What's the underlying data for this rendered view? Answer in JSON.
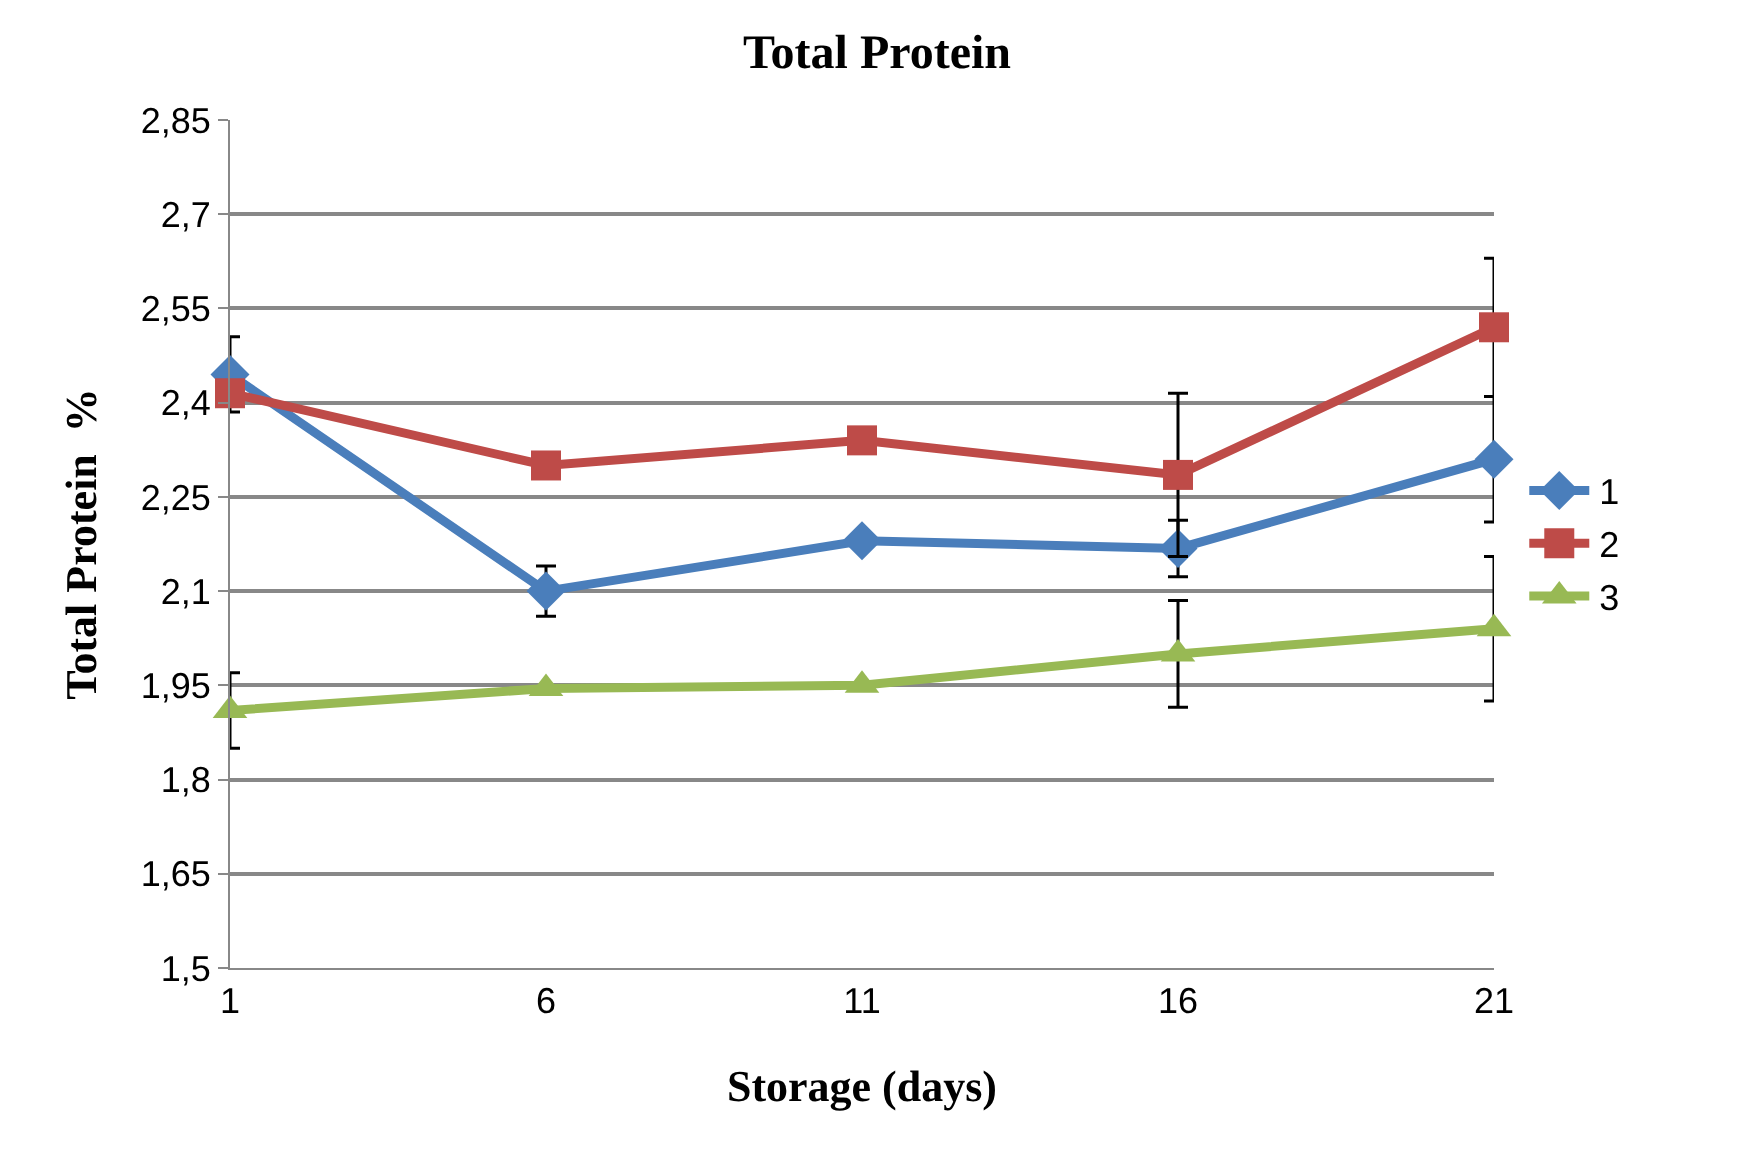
{
  "chart_data": {
    "type": "line",
    "title": "Total Protein",
    "xlabel": "Storage (days)",
    "ylabel": "Total Protein  %",
    "categories": [
      "1",
      "6",
      "11",
      "16",
      "21"
    ],
    "series": [
      {
        "name": "1",
        "color": "#4a7ebb",
        "marker": "diamond",
        "values": [
          2.445,
          2.1,
          2.18,
          2.168,
          2.31
        ],
        "errors": [
          0.06,
          0.04,
          null,
          0.045,
          0.1
        ]
      },
      {
        "name": "2",
        "color": "#be4b48",
        "marker": "square",
        "values": [
          2.415,
          2.3,
          2.34,
          2.285,
          2.52
        ],
        "errors": [
          null,
          null,
          null,
          0.13,
          0.11
        ]
      },
      {
        "name": "3",
        "color": "#98b954",
        "marker": "triangle",
        "values": [
          1.91,
          1.945,
          1.95,
          2.0,
          2.04
        ],
        "errors": [
          0.06,
          null,
          null,
          0.085,
          0.115
        ]
      }
    ],
    "ylim": [
      1.5,
      2.85
    ],
    "yticks": [
      {
        "value": 1.5,
        "label": "1,5"
      },
      {
        "value": 1.65,
        "label": "1,65"
      },
      {
        "value": 1.8,
        "label": "1,8"
      },
      {
        "value": 1.95,
        "label": "1,95"
      },
      {
        "value": 2.1,
        "label": "2,1"
      },
      {
        "value": 2.25,
        "label": "2,25"
      },
      {
        "value": 2.4,
        "label": "2,4"
      },
      {
        "value": 2.55,
        "label": "2,55"
      },
      {
        "value": 2.7,
        "label": "2,7"
      },
      {
        "value": 2.85,
        "label": "2,85"
      }
    ],
    "grid": "y",
    "legend": "right",
    "line_style": "solid"
  }
}
